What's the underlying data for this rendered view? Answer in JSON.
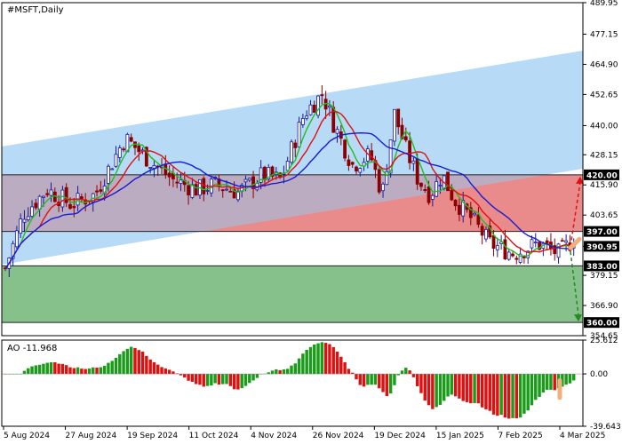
{
  "chart_data": {
    "type": "candlestick",
    "title": "#MSFT,Daily",
    "indicator_label": "AO -11.968",
    "price_ticks": [
      "489.95",
      "477.15",
      "464.90",
      "452.65",
      "440.00",
      "428.15",
      "415.90",
      "403.65",
      "390.95",
      "379.15",
      "366.90",
      "354.65"
    ],
    "price_levels": [
      {
        "value": 420.0,
        "label": "420.00"
      },
      {
        "value": 397.0,
        "label": "397.00"
      },
      {
        "value": 383.0,
        "label": "383.00"
      },
      {
        "value": 360.0,
        "label": "360.00"
      }
    ],
    "current_price_label": "390.95",
    "ao_ticks": [
      "25.612",
      "0.00",
      "-39.643"
    ],
    "ao_range": [
      -39.643,
      25.612
    ],
    "ylim": [
      354.65,
      489.95
    ],
    "date_labels": [
      "5 Aug 2024",
      "27 Aug 2024",
      "19 Sep 2024",
      "11 Oct 2024",
      "4 Nov 2024",
      "26 Nov 2024",
      "19 Dec 2024",
      "15 Jan 2025",
      "7 Feb 2025",
      "4 Mar 2025"
    ],
    "zones": [
      {
        "name": "resistance",
        "from": 397.0,
        "to": 420.0,
        "color": "#f2a0a0"
      },
      {
        "name": "support",
        "from": 360.0,
        "to": 383.0,
        "color": "#86c08a"
      }
    ],
    "channel_color": "#aad4f5",
    "ma_colors": {
      "green": "#1fbf1f",
      "red": "#e01010",
      "blue": "#1a1ad6"
    },
    "candle_up_color": "#1a1a9a",
    "candle_down_color": "#8b0000",
    "arrow_up_target": 420.0,
    "arrow_down_target": 360.0
  }
}
